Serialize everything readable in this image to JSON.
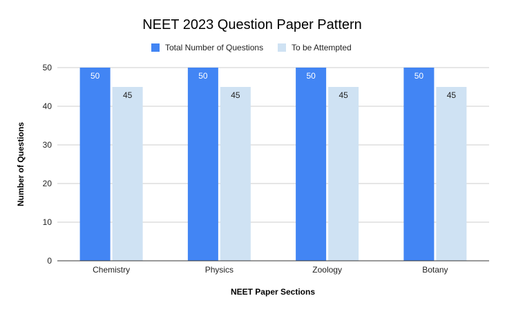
{
  "chart_data": {
    "type": "bar",
    "title": "NEET 2023 Question Paper Pattern",
    "xlabel": "NEET Paper Sections",
    "ylabel": "Number of Questions",
    "categories": [
      "Chemistry",
      "Physics",
      "Zoology",
      "Botany"
    ],
    "series": [
      {
        "name": "Total Number of Questions",
        "values": [
          50,
          50,
          50,
          50
        ],
        "color": "#4285f4"
      },
      {
        "name": "To be Attempted",
        "values": [
          45,
          45,
          45,
          45
        ],
        "color": "#cfe2f3"
      }
    ],
    "ylim": [
      0,
      50
    ],
    "yticks": [
      0,
      10,
      20,
      30,
      40,
      50
    ],
    "grid": true,
    "legend_position": "top-center",
    "data_labels": true
  }
}
